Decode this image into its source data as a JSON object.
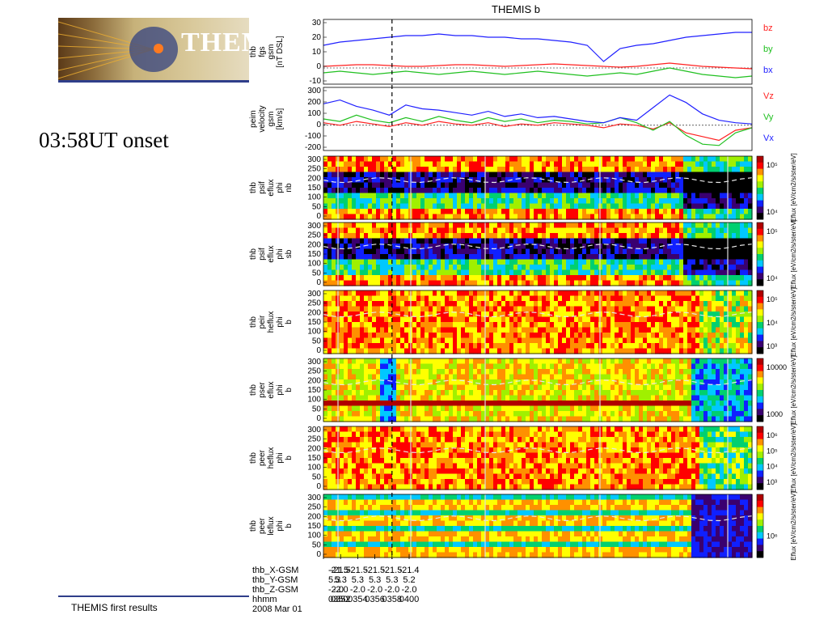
{
  "slide": {
    "banner_title": "THEM",
    "onset_label": "03:58UT onset",
    "footer_text": "THEMIS first results"
  },
  "chart_data": {
    "type": "heatmap",
    "title": "THEMIS b",
    "onset_time": "0358",
    "x": {
      "ticks": [
        "0350",
        "0352",
        "0354",
        "0356",
        "0358",
        "0400"
      ],
      "range_min": [
        350,
        400
      ],
      "ephemeris": [
        {
          "label": "thb_X-GSM",
          "values": [
            "-21.5",
            "-21.5",
            "-21.5",
            "-21.5",
            "-21.5",
            "-21.4"
          ]
        },
        {
          "label": "thb_Y-GSM",
          "values": [
            "5.3",
            "5.3",
            "5.3",
            "5.3",
            "5.3",
            "5.2"
          ]
        },
        {
          "label": "thb_Z-GSM",
          "values": [
            "-2.0",
            "-2.0",
            "-2.0",
            "-2.0",
            "-2.0",
            "-2.0"
          ]
        },
        {
          "label": "hhmm",
          "values": [
            "0350",
            "0352",
            "0354",
            "0356",
            "0358",
            "0400"
          ]
        }
      ],
      "date_label": "2008 Mar 01"
    },
    "panels": [
      {
        "kind": "line",
        "ylabel": [
          "thb",
          "fgs",
          "gsm",
          "[nT DSL]"
        ],
        "ylim": [
          -10,
          30
        ],
        "yticks": [
          "30",
          "20",
          "10",
          "0",
          "-10"
        ],
        "series": [
          {
            "name": "bz",
            "color": "#ff2020",
            "values": [
              1,
              1.5,
              2,
              2,
              1.5,
              1,
              1,
              1.5,
              2,
              2,
              1.5,
              1,
              1.5,
              2,
              2.5,
              2,
              1.5,
              1,
              0.5,
              1,
              2,
              3,
              2,
              1,
              0.5,
              0,
              -0.5
            ]
          },
          {
            "name": "by",
            "color": "#20c020",
            "values": [
              -3,
              -2,
              -3,
              -4,
              -3,
              -2,
              -3,
              -4,
              -3,
              -2,
              -3,
              -4,
              -3,
              -2,
              -3,
              -4,
              -5,
              -4,
              -3,
              -4,
              -2,
              0,
              -2,
              -4,
              -5,
              -6,
              -5
            ]
          },
          {
            "name": "bx",
            "color": "#2020ff",
            "values": [
              14,
              16,
              17,
              18,
              19,
              20,
              20,
              21,
              20,
              20,
              19,
              19,
              18,
              18,
              17,
              16,
              14,
              4,
              12,
              14,
              15,
              17,
              19,
              20,
              21,
              22,
              22
            ]
          }
        ]
      },
      {
        "kind": "line",
        "ylabel": [
          "peim",
          "velocity",
          "gsm",
          "[km/s]"
        ],
        "ylim": [
          -200,
          300
        ],
        "yticks": [
          "300",
          "200",
          "100",
          "0",
          "-100",
          "-200"
        ],
        "series": [
          {
            "name": "Vz",
            "color": "#ff2020",
            "values": [
              20,
              0,
              30,
              10,
              -10,
              20,
              0,
              30,
              10,
              0,
              20,
              -10,
              10,
              0,
              20,
              10,
              0,
              -20,
              10,
              0,
              -30,
              20,
              -60,
              -90,
              -120,
              -40,
              -20
            ]
          },
          {
            "name": "Vy",
            "color": "#20c020",
            "values": [
              50,
              30,
              80,
              40,
              20,
              60,
              30,
              70,
              40,
              20,
              60,
              30,
              50,
              20,
              40,
              30,
              10,
              20,
              60,
              20,
              -40,
              30,
              -80,
              -150,
              -160,
              -60,
              -20
            ]
          },
          {
            "name": "Vx",
            "color": "#2020ff",
            "values": [
              170,
              200,
              150,
              120,
              80,
              160,
              130,
              120,
              100,
              80,
              110,
              70,
              90,
              60,
              70,
              50,
              30,
              20,
              60,
              40,
              140,
              240,
              180,
              90,
              40,
              20,
              10
            ]
          }
        ]
      },
      {
        "kind": "spectrogram",
        "ylabel": [
          "thb",
          "psif",
          "eflux",
          "phi",
          "nb"
        ],
        "yticks": [
          "300",
          "250",
          "200",
          "150",
          "100",
          "50",
          "0"
        ],
        "cbar_label": "Eflux [eV/cm2/s/ster/eV]",
        "cbar_ticks": [
          "10⁵",
          "10⁴"
        ]
      },
      {
        "kind": "spectrogram",
        "ylabel": [
          "thb",
          "psif",
          "eflux",
          "phi",
          "sb"
        ],
        "yticks": [
          "300",
          "250",
          "200",
          "150",
          "100",
          "50",
          "0"
        ],
        "cbar_label": "Eflux [eV/cm2/s/ster/eV]",
        "cbar_ticks": [
          "10⁵",
          "10⁴"
        ]
      },
      {
        "kind": "spectrogram",
        "ylabel": [
          "thb",
          "peir",
          "heflux",
          "phi",
          "b"
        ],
        "yticks": [
          "300",
          "250",
          "200",
          "150",
          "100",
          "50",
          "0"
        ],
        "cbar_label": "Eflux [eV/cm2/s/ster/eV]",
        "cbar_ticks": [
          "10⁵",
          "10⁴",
          "10³"
        ]
      },
      {
        "kind": "spectrogram",
        "ylabel": [
          "thb",
          "pser",
          "eflux",
          "phi",
          "b"
        ],
        "yticks": [
          "300",
          "250",
          "200",
          "150",
          "100",
          "50",
          "0"
        ],
        "cbar_label": "Eflux [eV/cm2/s/ster/eV]",
        "cbar_ticks": [
          "10000",
          "1000"
        ]
      },
      {
        "kind": "spectrogram",
        "ylabel": [
          "thb",
          "peer",
          "heflux",
          "phi",
          "b"
        ],
        "yticks": [
          "300",
          "250",
          "200",
          "150",
          "100",
          "50",
          "0"
        ],
        "cbar_label": "Eflux [eV/cm2/s/ster/eV]",
        "cbar_ticks": [
          "10⁶",
          "10⁵",
          "10⁴",
          "10³"
        ]
      },
      {
        "kind": "spectrogram",
        "ylabel": [
          "thb",
          "peer",
          "leflux",
          "phi",
          "b"
        ],
        "yticks": [
          "300",
          "250",
          "200",
          "150",
          "100",
          "50",
          "0"
        ],
        "cbar_label": "Eflux [eV/cm2/s/ster/eV]",
        "cbar_ticks": [
          "10⁶"
        ]
      }
    ],
    "colors": {
      "spectrum": [
        "#000000",
        "#3a0070",
        "#1020ff",
        "#00c8ff",
        "#00d070",
        "#a0f000",
        "#ffff00",
        "#ff9000",
        "#ff0000",
        "#b00000"
      ]
    }
  }
}
